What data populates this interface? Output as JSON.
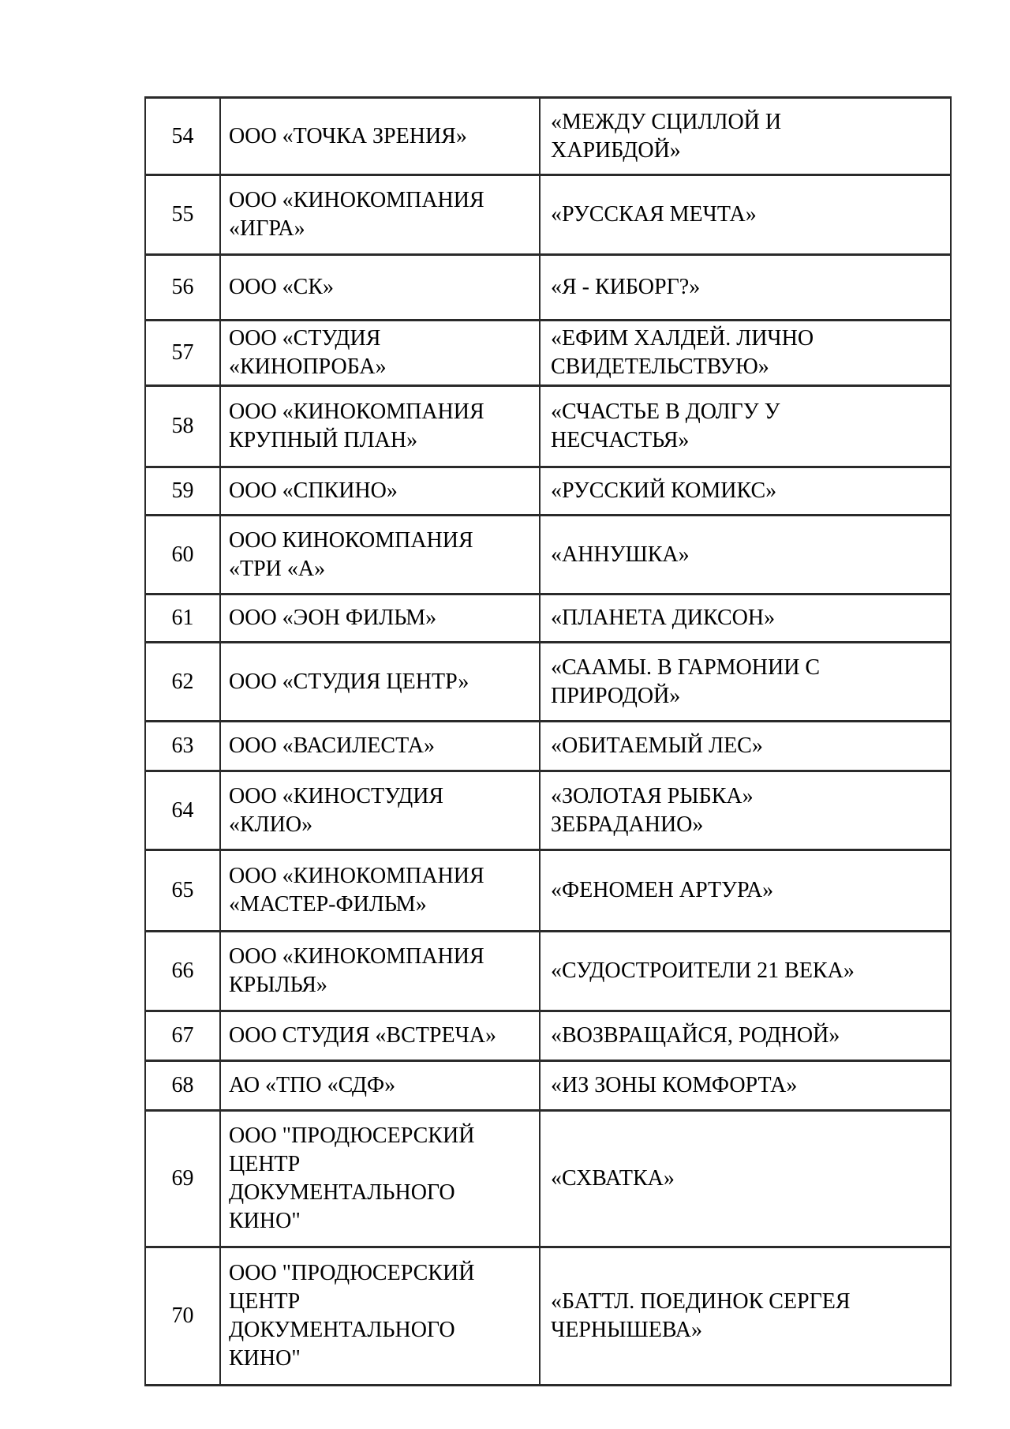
{
  "document": {
    "background_color": "#ffffff",
    "text_color": "#000000",
    "border_color": "#2a2a2a"
  },
  "table": {
    "columns": [
      "number",
      "company",
      "film_title"
    ],
    "rows": [
      {
        "number": "54",
        "company": "ООО «ТОЧКА ЗРЕНИЯ»",
        "title": "«МЕЖДУ СЦИЛЛОЙ И\nХАРИБДОЙ»"
      },
      {
        "number": "55",
        "company": "ООО «КИНОКОМПАНИЯ\n«ИГРА»",
        "title": "«РУССКАЯ МЕЧТА»"
      },
      {
        "number": "56",
        "company": "ООО «СК»",
        "title": "«Я - КИБОРГ?»"
      },
      {
        "number": "57",
        "company": "ООО «СТУДИЯ\n«КИНОПРОБА»",
        "title": "«ЕФИМ ХАЛДЕЙ. ЛИЧНО\nСВИДЕТЕЛЬСТВУЮ»"
      },
      {
        "number": "58",
        "company": "ООО «КИНОКОМПАНИЯ\nКРУПНЫЙ ПЛАН»",
        "title": "«СЧАСТЬЕ В ДОЛГУ У\nНЕСЧАСТЬЯ»"
      },
      {
        "number": "59",
        "company": "ООО «СПКИНО»",
        "title": "«РУССКИЙ КОМИКС»"
      },
      {
        "number": "60",
        "company": "ООО КИНОКОМПАНИЯ\n«ТРИ «А»",
        "title": "«АННУШКА»"
      },
      {
        "number": "61",
        "company": "ООО «ЭОН ФИЛЬМ»",
        "title": "«ПЛАНЕТА ДИКСОН»"
      },
      {
        "number": "62",
        "company": "ООО «СТУДИЯ ЦЕНТР»",
        "title": "«СААМЫ. В ГАРМОНИИ С\nПРИРОДОЙ»"
      },
      {
        "number": "63",
        "company": "ООО «ВАСИЛЕСТА»",
        "title": "«ОБИТАЕМЫЙ ЛЕС»"
      },
      {
        "number": "64",
        "company": "ООО «КИНОСТУДИЯ\n«КЛИО»",
        "title": "«ЗОЛОТАЯ РЫБКА»\nЗЕБРАДАНИО»"
      },
      {
        "number": "65",
        "company": "ООО «КИНОКОМПАНИЯ\n«МАСТЕР-ФИЛЬМ»",
        "title": "«ФЕНОМЕН АРТУРА»"
      },
      {
        "number": "66",
        "company": "ООО «КИНОКОМПАНИЯ\nКРЫЛЬЯ»",
        "title": "«СУДОСТРОИТЕЛИ 21 ВЕКА»"
      },
      {
        "number": "67",
        "company": "ООО СТУДИЯ «ВСТРЕЧА»",
        "title": "«ВОЗВРАЩАЙСЯ, РОДНОЙ»"
      },
      {
        "number": "68",
        "company": "АО «ТПО «СДФ»",
        "title": "«ИЗ ЗОНЫ КОМФОРТА»"
      },
      {
        "number": "69",
        "company": "ООО \"ПРОДЮСЕРСКИЙ\nЦЕНТР\nДОКУМЕНТАЛЬНОГО\nКИНО\"",
        "title": "«СХВАТКА»"
      },
      {
        "number": "70",
        "company": "ООО \"ПРОДЮСЕРСКИЙ\nЦЕНТР\nДОКУМЕНТАЛЬНОГО\nКИНО\"",
        "title": "«БАТТЛ. ПОЕДИНОК СЕРГЕЯ\nЧЕРНЫШЕВА»"
      }
    ]
  }
}
